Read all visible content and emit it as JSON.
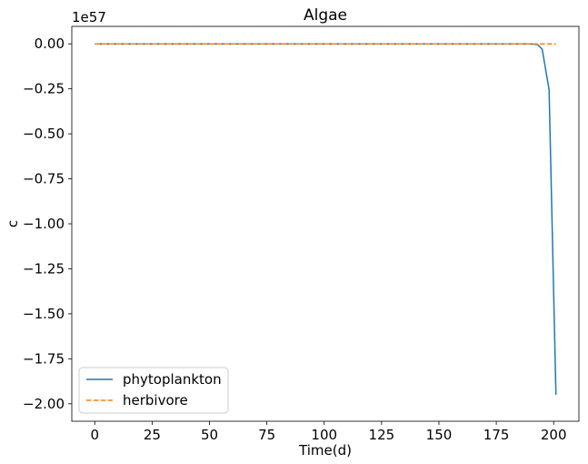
{
  "chart_data": {
    "type": "line",
    "title": "Algae",
    "xlabel": "Time(d)",
    "ylabel": "c",
    "y_offset_text": "1e57",
    "xlim": [
      -10,
      211
    ],
    "ylim": [
      -2.097,
      0.097
    ],
    "x_ticks": [
      {
        "value": 0,
        "label": "0"
      },
      {
        "value": 25,
        "label": "25"
      },
      {
        "value": 50,
        "label": "50"
      },
      {
        "value": 75,
        "label": "75"
      },
      {
        "value": 100,
        "label": "100"
      },
      {
        "value": 125,
        "label": "125"
      },
      {
        "value": 150,
        "label": "150"
      },
      {
        "value": 175,
        "label": "175"
      },
      {
        "value": 200,
        "label": "200"
      }
    ],
    "y_ticks": [
      {
        "value": 0,
        "label": "0.00"
      },
      {
        "value": -0.25,
        "label": "−0.25"
      },
      {
        "value": -0.5,
        "label": "−0.50"
      },
      {
        "value": -0.75,
        "label": "−0.75"
      },
      {
        "value": -1.0,
        "label": "−1.00"
      },
      {
        "value": -1.25,
        "label": "−1.25"
      },
      {
        "value": -1.5,
        "label": "−1.50"
      },
      {
        "value": -1.75,
        "label": "−1.75"
      },
      {
        "value": -2.0,
        "label": "−2.00"
      }
    ],
    "grid": false,
    "legend_position": "lower-left",
    "series": [
      {
        "name": "phytoplankton",
        "color": "#1f77b4",
        "style": "solid",
        "x": [
          0,
          50,
          100,
          150,
          185,
          190,
          193,
          195,
          198,
          201
        ],
        "y": [
          0,
          0,
          0,
          0,
          0,
          -0.0005,
          -0.004,
          -0.03,
          -0.255,
          -1.95
        ]
      },
      {
        "name": "herbivore",
        "color": "#ff7f0e",
        "style": "dashed",
        "x": [
          0,
          201
        ],
        "y": [
          0,
          0
        ]
      }
    ]
  }
}
